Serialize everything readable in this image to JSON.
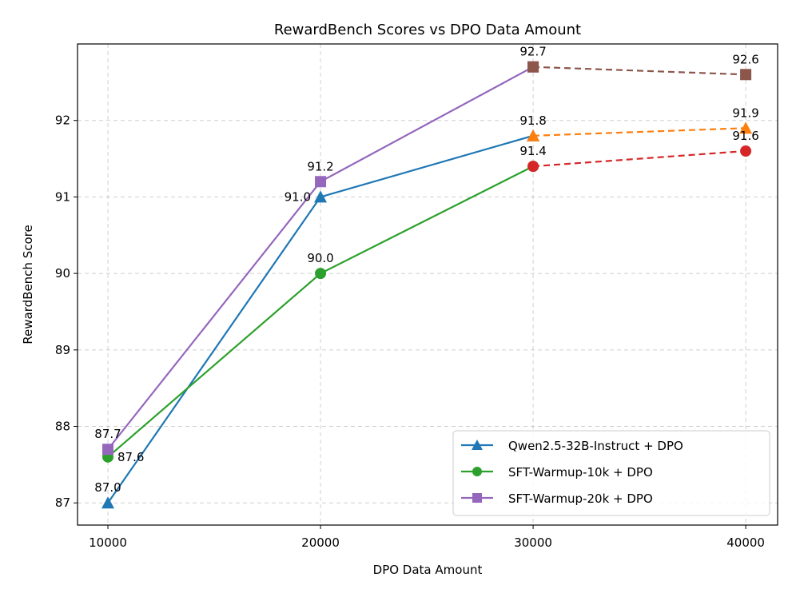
{
  "chart_data": {
    "type": "line",
    "title": "RewardBench Scores vs DPO Data Amount",
    "xlabel": "DPO Data Amount",
    "ylabel": "RewardBench Score",
    "x": [
      10000,
      20000,
      30000,
      40000
    ],
    "xticks": [
      "10000",
      "20000",
      "30000",
      "40000"
    ],
    "yticks": [
      "87",
      "88",
      "89",
      "90",
      "91",
      "92"
    ],
    "xlim": [
      8571,
      41500
    ],
    "ylim": [
      86.71,
      93.0
    ],
    "grid": true,
    "legend_position": "lower-right",
    "series": [
      {
        "name": "Qwen2.5-32B-Instruct + DPO",
        "marker": "triangle",
        "color": "#1f77b4",
        "x": [
          10000,
          20000,
          30000
        ],
        "values": [
          87.0,
          91.0,
          91.8
        ],
        "labels": [
          "87.0",
          "91.0",
          "91.8"
        ]
      },
      {
        "name": "SFT-Warmup-10k + DPO",
        "marker": "circle",
        "color": "#2ca02c",
        "x": [
          10000,
          20000,
          30000
        ],
        "values": [
          87.6,
          90.0,
          91.4
        ],
        "labels": [
          "87.6",
          "90.0",
          "91.4"
        ]
      },
      {
        "name": "SFT-Warmup-20k + DPO",
        "marker": "square",
        "color": "#9467bd",
        "x": [
          10000,
          20000,
          30000
        ],
        "values": [
          87.7,
          91.2,
          92.7
        ],
        "labels": [
          "87.7",
          "91.2",
          "92.7"
        ]
      },
      {
        "marker": "triangle",
        "color": "#ff7f0e",
        "dashed": true,
        "x": [
          30000,
          40000
        ],
        "values": [
          91.8,
          91.9
        ],
        "labels": [
          "",
          "91.9"
        ]
      },
      {
        "marker": "circle",
        "color": "#d62728",
        "dashed": true,
        "x": [
          30000,
          40000
        ],
        "values": [
          91.4,
          91.6
        ],
        "labels": [
          "",
          "91.6"
        ]
      },
      {
        "marker": "square",
        "color": "#8c564b",
        "dashed": true,
        "x": [
          30000,
          40000
        ],
        "values": [
          92.7,
          92.6
        ],
        "labels": [
          "",
          "92.6"
        ]
      }
    ]
  }
}
